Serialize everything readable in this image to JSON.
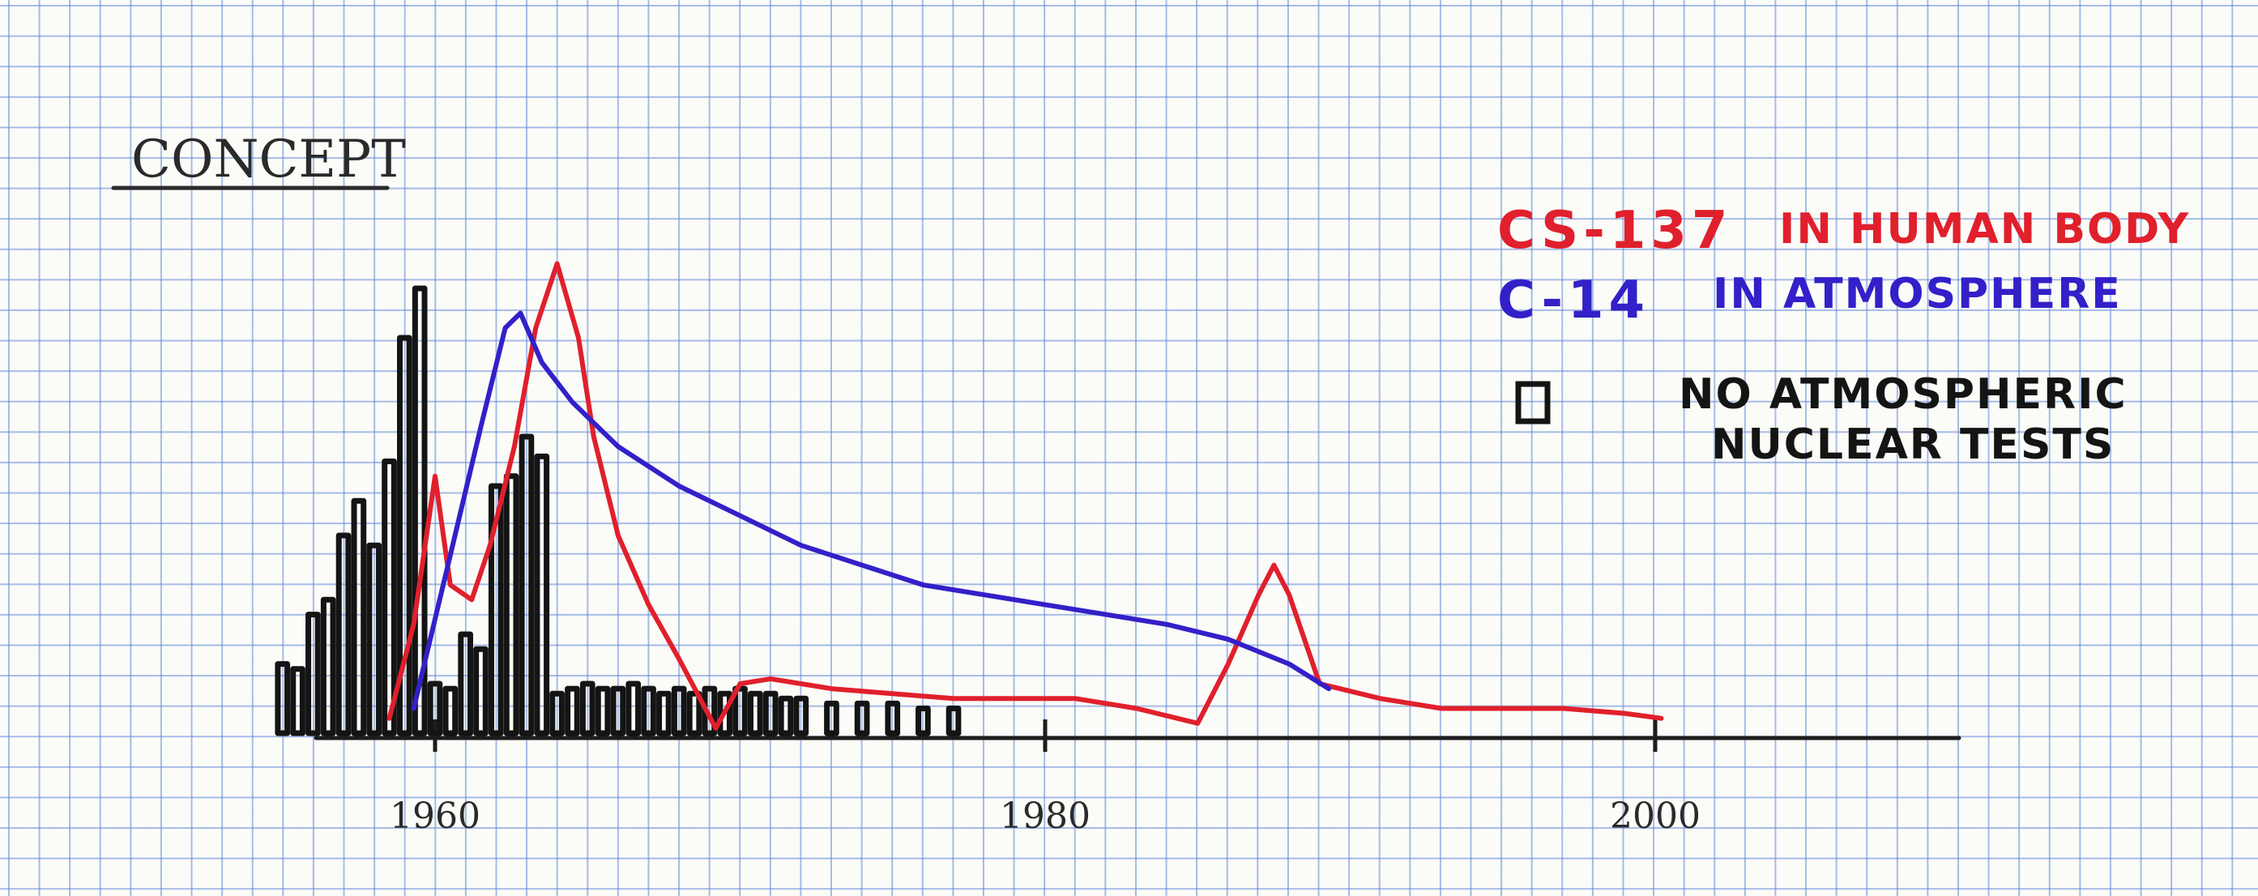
{
  "chart_data": {
    "type": "line",
    "title": "CONCEPT",
    "xlabel": "",
    "ylabel": "",
    "x_ticks": [
      1960,
      1980,
      2000
    ],
    "x_tick_labels": [
      "1960",
      "1980",
      "2000"
    ],
    "xlim": [
      1955,
      2010
    ],
    "ylim": [
      0,
      100
    ],
    "series": [
      {
        "name": "CS-137 IN HUMAN BODY",
        "kind": "line",
        "color": "#e0202c",
        "x": [
          1958.5,
          1959.3,
          1960.0,
          1960.5,
          1961.2,
          1961.8,
          1962.6,
          1963.3,
          1964.0,
          1964.7,
          1965.2,
          1966.0,
          1967.0,
          1968.0,
          1969.2,
          1970.0,
          1971.0,
          1973.0,
          1975.0,
          1977.0,
          1979.0,
          1981.0,
          1983.0,
          1985.0,
          1986.0,
          1987.0,
          1987.5,
          1988.0,
          1989.0,
          1991.0,
          1993.0,
          1995.0,
          1997.0,
          1999.0,
          2000.2
        ],
        "values": [
          3,
          22,
          52,
          30,
          27,
          38,
          58,
          82,
          95,
          80,
          60,
          40,
          26,
          15,
          1,
          10,
          11,
          9,
          8,
          7,
          7,
          7,
          5,
          2,
          14,
          28,
          34,
          28,
          10,
          7,
          5,
          5,
          5,
          4,
          3
        ]
      },
      {
        "name": "C-14 IN ATMOSPHERE",
        "kind": "line",
        "color": "#3320c8",
        "x": [
          1959.3,
          1960.5,
          1961.5,
          1962.3,
          1962.8,
          1963.5,
          1964.5,
          1966.0,
          1968.0,
          1970.0,
          1972.0,
          1974.0,
          1976.0,
          1978.0,
          1980.0,
          1982.0,
          1984.0,
          1986.0,
          1988.0,
          1989.3
        ],
        "values": [
          5,
          36,
          62,
          82,
          85,
          75,
          67,
          58,
          50,
          44,
          38,
          34,
          30,
          28,
          26,
          24,
          22,
          19,
          14,
          9
        ]
      },
      {
        "name": "ATMOSPHERIC NUCLEAR TESTS",
        "kind": "bar",
        "color": "#141414",
        "x": [
          1955.0,
          1955.5,
          1956.0,
          1956.5,
          1957.0,
          1957.5,
          1958.0,
          1958.5,
          1959.0,
          1959.5,
          1960.0,
          1960.5,
          1961.0,
          1961.5,
          1962.0,
          1962.5,
          1963.0,
          1963.5,
          1964.0,
          1964.5,
          1965.0,
          1965.5,
          1966.0,
          1966.5,
          1967.0,
          1967.5,
          1968.0,
          1968.5,
          1969.0,
          1969.5,
          1970.0,
          1970.5,
          1971.0,
          1971.5,
          1972.0,
          1973.0,
          1974.0,
          1975.0,
          1976.0,
          1977.0
        ],
        "values": [
          14,
          13,
          24,
          27,
          40,
          47,
          38,
          55,
          80,
          90,
          10,
          9,
          20,
          17,
          50,
          52,
          60,
          56,
          8,
          9,
          10,
          9,
          9,
          10,
          9,
          8,
          9,
          8,
          9,
          8,
          9,
          8,
          8,
          7,
          7,
          6,
          6,
          6,
          5,
          5
        ]
      }
    ],
    "legend": [
      {
        "code": "CS-137",
        "text": "IN HUMAN BODY",
        "color": "#e0202c"
      },
      {
        "code": "C-14",
        "text": "IN ATMOSPHERE",
        "color": "#3320c8"
      },
      {
        "code": "",
        "text": "NO ATMOSPHERIC NUCLEAR TESTS",
        "color": "#141414",
        "icon": "bar-square-icon"
      }
    ],
    "legend_placement": "top-right",
    "grid": true,
    "background": "graph paper"
  }
}
